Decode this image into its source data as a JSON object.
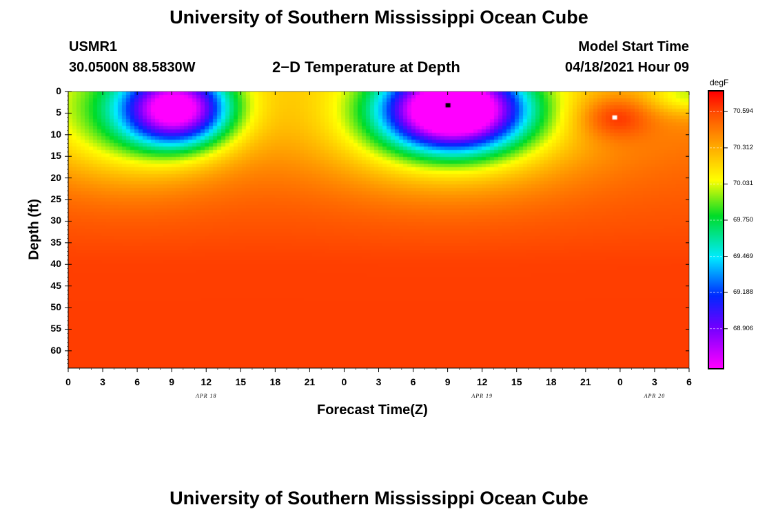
{
  "page": {
    "title_top": "University of Southern Mississippi Ocean Cube",
    "title_bottom": "University of Southern Mississippi Ocean Cube",
    "station_id": "USMR1",
    "station_coords": "30.0500N  88.5830W",
    "plot_title": "2−D Temperature at Depth",
    "model_start_label": "Model Start Time",
    "model_start_value": "04/18/2021 Hour 09"
  },
  "chart_data": {
    "type": "heatmap",
    "title": "2-D Temperature at Depth",
    "xlabel": "Forecast Time(Z)",
    "ylabel": "Depth (ft)",
    "x_tick_labels": [
      "0",
      "3",
      "6",
      "9",
      "12",
      "15",
      "18",
      "21",
      "0",
      "3",
      "6",
      "9",
      "12",
      "15",
      "18",
      "21",
      "0",
      "3",
      "6"
    ],
    "x_hours": [
      0,
      3,
      6,
      9,
      12,
      15,
      18,
      21,
      24,
      27,
      30,
      33,
      36,
      39,
      42,
      45,
      48,
      51,
      54
    ],
    "date_labels": [
      {
        "label": "APR  18",
        "hour": 12
      },
      {
        "label": "APR  19",
        "hour": 36
      },
      {
        "label": "APR  20",
        "hour": 51
      }
    ],
    "y_ticks": [
      0,
      5,
      10,
      15,
      20,
      25,
      30,
      35,
      40,
      45,
      50,
      55,
      60
    ],
    "xlim": [
      0,
      54
    ],
    "ylim": [
      0,
      64
    ],
    "colorbar": {
      "units": "degF",
      "range": [
        68.6,
        70.75
      ],
      "ticks": [
        70.594,
        70.312,
        70.031,
        69.75,
        69.469,
        69.188,
        68.906
      ],
      "tick_labels": [
        "70.594",
        "70.312",
        "70.031",
        "69.750",
        "69.469",
        "69.188",
        "68.906"
      ]
    },
    "field": {
      "background_degF": 70.48,
      "deep_value_degF": 70.62,
      "features": [
        {
          "name": "cold pocket",
          "t_hour": 9.5,
          "depth_ft": 4,
          "amplitude_degF": -1.55,
          "sigma_hours": 3.2,
          "sigma_ft": 6
        },
        {
          "name": "cold pocket",
          "t_hour": 33.5,
          "depth_ft": 4,
          "amplitude_degF": -1.95,
          "sigma_hours": 4.2,
          "sigma_ft": 6.5
        },
        {
          "name": "cool band",
          "t_hour": 5.5,
          "depth_ft": 6,
          "amplitude_degF": -0.6,
          "sigma_hours": 6,
          "sigma_ft": 10
        },
        {
          "name": "cool band",
          "t_hour": 33,
          "depth_ft": 8,
          "amplitude_degF": -0.55,
          "sigma_hours": 8,
          "sigma_ft": 10
        },
        {
          "name": "warm pocket",
          "t_hour": 47.5,
          "depth_ft": 6,
          "amplitude_degF": 0.3,
          "sigma_hours": 2.2,
          "sigma_ft": 3.5
        }
      ],
      "markers": [
        {
          "name": "minimum",
          "t_hour": 33,
          "depth_ft": 3.2,
          "color": "#000000"
        },
        {
          "name": "maximum",
          "t_hour": 47.5,
          "depth_ft": 6,
          "color": "#ffffff"
        }
      ]
    }
  }
}
